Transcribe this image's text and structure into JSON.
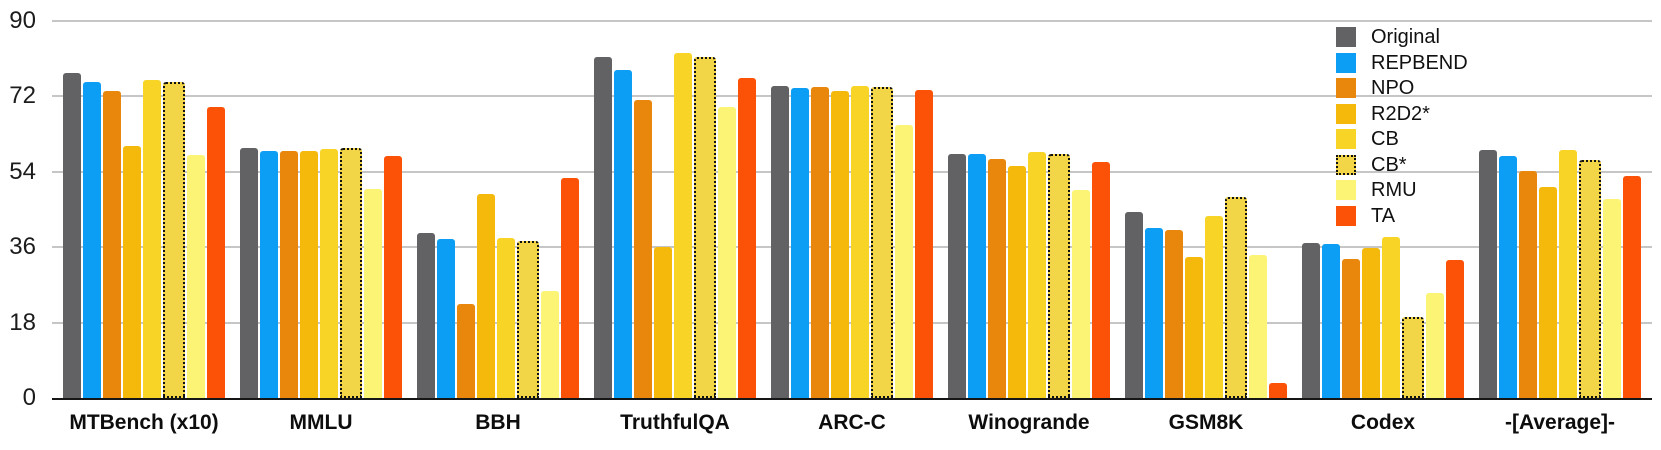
{
  "chart_data": {
    "type": "bar",
    "title": "",
    "xlabel": "",
    "ylabel": "",
    "ylim": [
      0,
      90
    ],
    "yticks": [
      0,
      18,
      36,
      54,
      72,
      90
    ],
    "grid": true,
    "legend_position": "top-right",
    "categories": [
      "MTBench (x10)",
      "MMLU",
      "BBH",
      "TruthfulQA",
      "ARC-C",
      "Winogrande",
      "GSM8K",
      "Codex",
      "-[Average]-"
    ],
    "series": [
      {
        "name": "Original",
        "color": "#626265",
        "dotted": false,
        "values": [
          77.5,
          59.8,
          39.4,
          81.3,
          74.6,
          58.2,
          44.4,
          37.1,
          59.1
        ]
      },
      {
        "name": "REPBEND",
        "color": "#0C9DF5",
        "dotted": false,
        "values": [
          75.5,
          59.0,
          37.9,
          78.3,
          73.9,
          58.2,
          40.7,
          36.8,
          57.8
        ]
      },
      {
        "name": "NPO",
        "color": "#E8870B",
        "dotted": false,
        "values": [
          73.2,
          58.9,
          22.4,
          71.2,
          74.2,
          57.0,
          40.0,
          33.1,
          54.1
        ]
      },
      {
        "name": "R2D2*",
        "color": "#F5B90C",
        "dotted": false,
        "values": [
          60.1,
          58.9,
          48.7,
          36.1,
          73.4,
          55.3,
          33.7,
          35.7,
          50.4
        ]
      },
      {
        "name": "CB",
        "color": "#F8D426",
        "dotted": false,
        "values": [
          76.0,
          59.4,
          38.1,
          82.3,
          74.4,
          58.8,
          43.4,
          38.5,
          59.3
        ]
      },
      {
        "name": "CB*",
        "color": "#F2D648",
        "dotted": true,
        "values": [
          75.4,
          59.7,
          37.4,
          81.4,
          74.3,
          58.2,
          47.9,
          19.4,
          56.9
        ]
      },
      {
        "name": "RMU",
        "color": "#FCF475",
        "dotted": false,
        "values": [
          57.9,
          49.9,
          25.5,
          69.5,
          65.1,
          49.6,
          34.1,
          25.1,
          47.5
        ]
      },
      {
        "name": "TA",
        "color": "#FC5207",
        "dotted": false,
        "values": [
          69.4,
          57.8,
          52.6,
          76.5,
          73.6,
          56.3,
          3.7,
          32.9,
          52.9
        ]
      }
    ],
    "colors": {
      "axis": "#161616",
      "gridline": "#c6c6c6",
      "background": "#ffffff"
    }
  }
}
